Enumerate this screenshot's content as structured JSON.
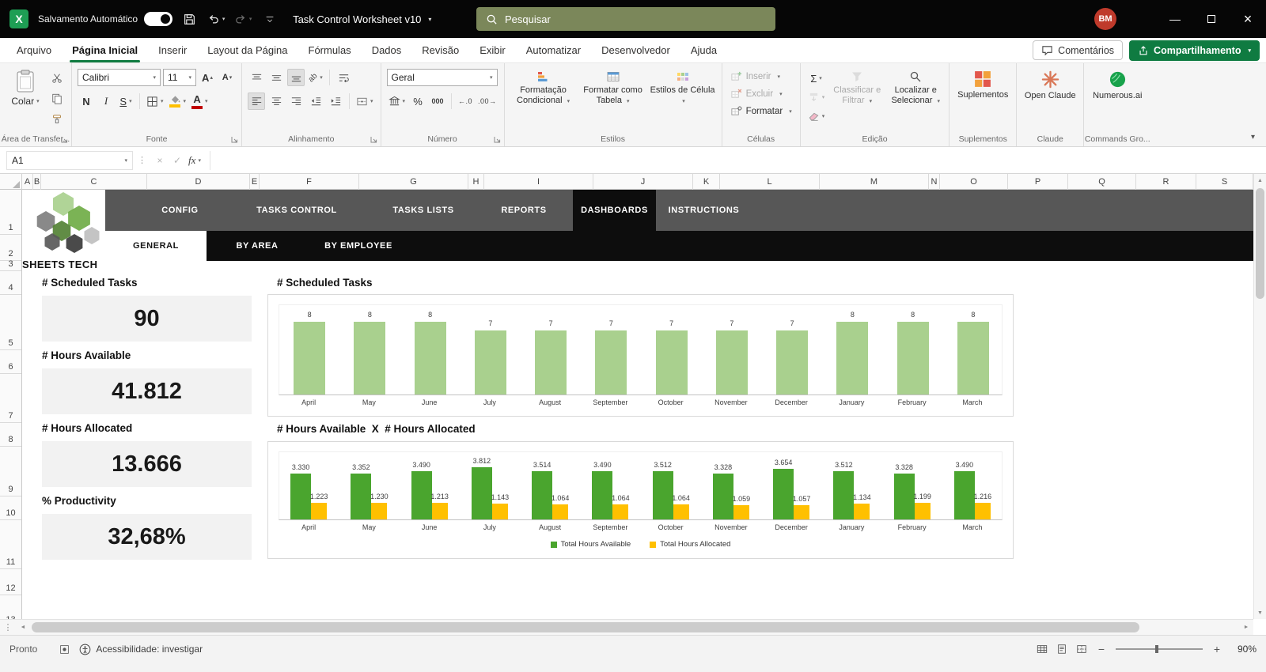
{
  "colors": {
    "excel_green": "#107c41",
    "band_gray": "#575757",
    "band_black": "#0d0d0d",
    "search_bg": "#7b875a"
  },
  "titlebar": {
    "autosave_label": "Salvamento Automático",
    "doc_title": "Task Control Worksheet v10",
    "search_placeholder": "Pesquisar",
    "avatar_initials": "BM"
  },
  "ribbon": {
    "tabs": [
      "Arquivo",
      "Página Inicial",
      "Inserir",
      "Layout da Página",
      "Fórmulas",
      "Dados",
      "Revisão",
      "Exibir",
      "Automatizar",
      "Desenvolvedor",
      "Ajuda"
    ],
    "active_tab": "Página Inicial",
    "comments": "Comentários",
    "share": "Compartilhamento",
    "clipboard": {
      "paste": "Colar",
      "group": "Área de Transfer..."
    },
    "font": {
      "family": "Calibri",
      "size": "11",
      "grow": "A",
      "shrink": "A",
      "bold": "N",
      "italic": "I",
      "underline": "S",
      "color_letter": "A",
      "fill_swatch": "#ffc000",
      "color_swatch": "#c00000",
      "group": "Fonte"
    },
    "alignment": {
      "group": "Alinhamento",
      "orient_glyph": "ab"
    },
    "number": {
      "format": "Geral",
      "percent": "%",
      "thousand": "000",
      "inc_decimal": "←.0",
      "dec_decimal": ".00→",
      "group": "Número"
    },
    "styles": {
      "conditional": "Formatação Condicional",
      "table": "Formatar como Tabela",
      "cell": "Estilos de Célula",
      "group": "Estilos"
    },
    "cells": {
      "insert": "Inserir",
      "del": "Excluir",
      "format": "Formatar",
      "group": "Células"
    },
    "editing": {
      "sum": "Σ",
      "sort": "Classificar e Filtrar",
      "find": "Localizar e Selecionar",
      "group": "Edição"
    },
    "addins": {
      "button": "Suplementos",
      "group": "Suplementos"
    },
    "claude": {
      "button": "Open Claude",
      "group": "Claude"
    },
    "numerous": {
      "button": "Numerous.ai",
      "group": "Commands Gro..."
    }
  },
  "formula_bar": {
    "cell_ref": "A1",
    "fx_label": "fx",
    "input_value": ""
  },
  "grid": {
    "columns": [
      "A",
      "B",
      "C",
      "D",
      "E",
      "F",
      "G",
      "H",
      "I",
      "J",
      "K",
      "L",
      "M",
      "N",
      "O",
      "P",
      "Q",
      "R",
      "S"
    ],
    "row_count": 13
  },
  "sheet": {
    "logo_text": "SHEETS TECH",
    "logo_colors": [
      "#a9d08e",
      "#70ad47",
      "#548235",
      "#7f7f7f",
      "#bfbfbf",
      "#595959",
      "#3b3b3b"
    ],
    "nav_tabs": [
      "CONFIG",
      "TASKS CONTROL",
      "TASKS LISTS",
      "REPORTS",
      "DASHBOARDS",
      "INSTRUCTIONS"
    ],
    "active_nav_tab": "DASHBOARDS",
    "sub_tabs": [
      "GENERAL",
      "BY AREA",
      "BY EMPLOYEE"
    ],
    "active_sub_tab": "GENERAL"
  },
  "kpis": [
    {
      "label": "# Scheduled Tasks",
      "value": "90"
    },
    {
      "label": "# Hours Available",
      "value": "41.812"
    },
    {
      "label": "# Hours Allocated",
      "value": "13.666"
    },
    {
      "label": "% Productivity",
      "value": "32,68%"
    }
  ],
  "chart_data": [
    {
      "type": "bar",
      "title": "# Scheduled Tasks",
      "categories": [
        "April",
        "May",
        "June",
        "July",
        "August",
        "September",
        "October",
        "November",
        "December",
        "January",
        "February",
        "March"
      ],
      "values": [
        8,
        8,
        8,
        7,
        7,
        7,
        7,
        7,
        7,
        8,
        8,
        8
      ],
      "bar_color": "#a9d08e",
      "data_labels": true,
      "ylim": [
        0,
        10
      ],
      "grid": false,
      "legend": "none"
    },
    {
      "type": "bar",
      "title": "# Hours Available  X  # Hours Allocated",
      "categories": [
        "April",
        "May",
        "June",
        "July",
        "August",
        "September",
        "October",
        "November",
        "December",
        "January",
        "February",
        "March"
      ],
      "series": [
        {
          "name": "Total Hours Available",
          "color": "#4aa52e",
          "values": [
            3330,
            3352,
            3490,
            3812,
            3514,
            3490,
            3512,
            3328,
            3654,
            3512,
            3328,
            3490
          ],
          "labels": [
            "3.330",
            "3.352",
            "3.490",
            "3.812",
            "3.514",
            "3.490",
            "3.512",
            "3.328",
            "3.654",
            "3.512",
            "3.328",
            "3.490"
          ]
        },
        {
          "name": "Total Hours Allocated",
          "color": "#ffc000",
          "values": [
            1223,
            1230,
            1213,
            1143,
            1064,
            1064,
            1064,
            1059,
            1057,
            1134,
            1199,
            1216
          ],
          "labels": [
            "1.223",
            "1.230",
            "1.213",
            "1.143",
            "1.064",
            "1.064",
            "1.064",
            "1.059",
            "1.057",
            "1.134",
            "1.199",
            "1.216"
          ]
        }
      ],
      "data_labels": true,
      "ylim": [
        0,
        5000
      ],
      "grid": false,
      "legend_position": "bottom"
    }
  ],
  "statusbar": {
    "ready": "Pronto",
    "accessibility": "Acessibilidade: investigar",
    "zoom": "90%"
  }
}
